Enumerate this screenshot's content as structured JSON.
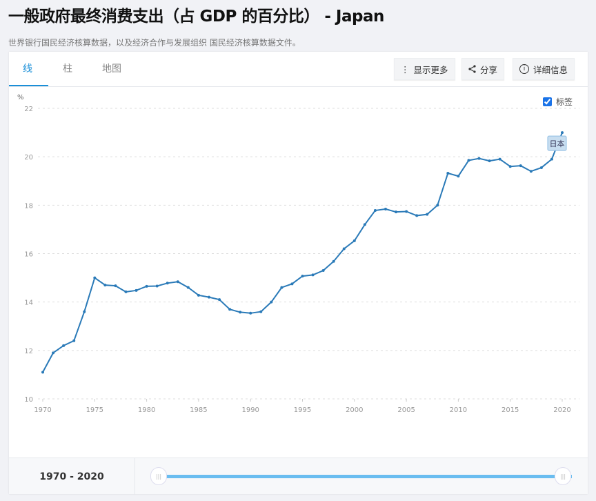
{
  "header": {
    "title": "一般政府最终消费支出（占 GDP 的百分比） - Japan",
    "subtitle": "世界银行国民经济核算数据，以及经济合作与发展组织 国民经济核算数据文件。"
  },
  "tabs": [
    {
      "label": "线",
      "active": true
    },
    {
      "label": "柱"
    },
    {
      "label": "地图"
    }
  ],
  "toolbar": {
    "more": "显示更多",
    "share": "分享",
    "details": "详细信息"
  },
  "legend": {
    "checkbox_label": "标签",
    "checked": true
  },
  "range": {
    "label": "1970 - 2020",
    "start": 1970,
    "end": 2020
  },
  "colors": {
    "series": "#2a7ab8",
    "accent": "#1a8fd8",
    "slider": "#6abdf0"
  },
  "chart_data": {
    "type": "line",
    "ylabel": "%",
    "ylim": [
      10,
      22
    ],
    "yticks": [
      "10",
      "12",
      "14",
      "16",
      "18",
      "20",
      "22"
    ],
    "xticks": [
      "1970",
      "1975",
      "1980",
      "1985",
      "1990",
      "1995",
      "2000",
      "2005",
      "2010",
      "2015",
      "2020"
    ],
    "grid": true,
    "series_label": "日本",
    "x": [
      1970,
      1971,
      1972,
      1973,
      1974,
      1975,
      1976,
      1977,
      1978,
      1979,
      1980,
      1981,
      1982,
      1983,
      1984,
      1985,
      1986,
      1987,
      1988,
      1989,
      1990,
      1991,
      1992,
      1993,
      1994,
      1995,
      1996,
      1997,
      1998,
      1999,
      2000,
      2001,
      2002,
      2003,
      2004,
      2005,
      2006,
      2007,
      2008,
      2009,
      2010,
      2011,
      2012,
      2013,
      2014,
      2015,
      2016,
      2017,
      2018,
      2019,
      2020
    ],
    "values": [
      11.1,
      11.9,
      12.2,
      12.4,
      13.6,
      15.0,
      14.7,
      14.67,
      14.42,
      14.48,
      14.65,
      14.66,
      14.78,
      14.84,
      14.6,
      14.28,
      14.2,
      14.1,
      13.7,
      13.58,
      13.54,
      13.6,
      14.0,
      14.6,
      14.75,
      15.07,
      15.12,
      15.3,
      15.68,
      16.2,
      16.53,
      17.2,
      17.78,
      17.84,
      17.72,
      17.74,
      17.57,
      17.62,
      18.0,
      19.32,
      19.2,
      19.85,
      19.93,
      19.83,
      19.9,
      19.6,
      19.63,
      19.4,
      19.55,
      19.9,
      21.0
    ]
  }
}
